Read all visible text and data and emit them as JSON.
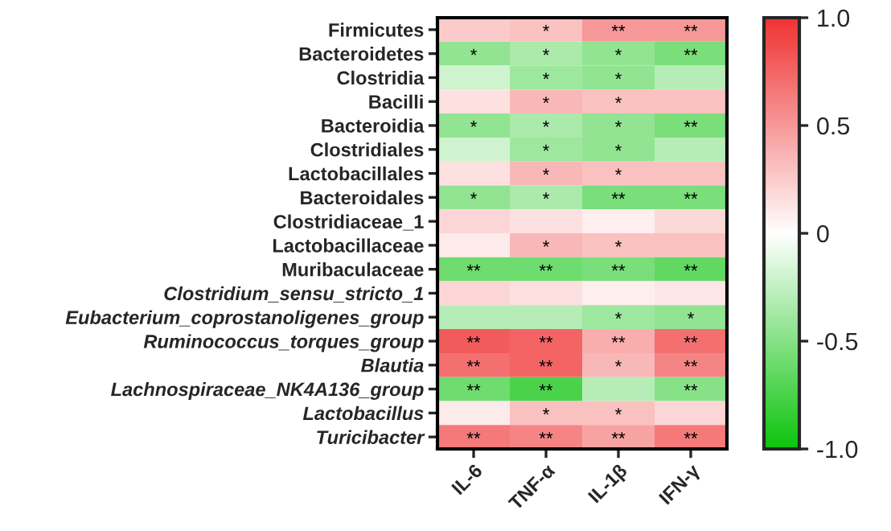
{
  "chart_data": {
    "type": "heatmap",
    "categories": [
      "IL-6",
      "TNF-α",
      "IL-1β",
      "IFN-γ"
    ],
    "y_categories": [
      "Firmicutes",
      "Bacteroidetes",
      "Clostridia",
      "Bacilli",
      "Bacteroidia",
      "Clostridiales",
      "Lactobacillales",
      "Bacteroidales",
      "Clostridiaceae_1",
      "Lactobacillaceae",
      "Muribaculaceae",
      "Clostridium_sensu_stricto_1",
      "Eubacterium_coprostanoligenes_group",
      "Ruminococcus_torques_group",
      "Blautia",
      "Lachnospiraceae_NK4A136_group",
      "Lactobacillus",
      "Turicibacter"
    ],
    "cells": [
      [
        0.25,
        0.3,
        0.5,
        0.5
      ],
      [
        -0.45,
        -0.35,
        -0.45,
        -0.55
      ],
      [
        -0.2,
        -0.4,
        -0.45,
        -0.3
      ],
      [
        0.15,
        0.35,
        0.3,
        0.3
      ],
      [
        -0.45,
        -0.35,
        -0.45,
        -0.55
      ],
      [
        -0.2,
        -0.4,
        -0.45,
        -0.3
      ],
      [
        0.15,
        0.35,
        0.3,
        0.3
      ],
      [
        -0.45,
        -0.35,
        -0.55,
        -0.55
      ],
      [
        0.2,
        0.15,
        0.08,
        0.18
      ],
      [
        0.1,
        0.35,
        0.3,
        0.3
      ],
      [
        -0.6,
        -0.6,
        -0.55,
        -0.65
      ],
      [
        0.2,
        0.15,
        0.08,
        0.12
      ],
      [
        -0.3,
        -0.3,
        -0.4,
        -0.45
      ],
      [
        0.8,
        0.75,
        0.4,
        0.7
      ],
      [
        0.7,
        0.75,
        0.35,
        0.6
      ],
      [
        -0.6,
        -0.75,
        -0.3,
        -0.5
      ],
      [
        0.1,
        0.3,
        0.3,
        0.2
      ],
      [
        0.65,
        0.6,
        0.45,
        0.65
      ]
    ],
    "cell_labels": [
      [
        null,
        "*",
        "**",
        "**"
      ],
      [
        "*",
        "*",
        "*",
        "**"
      ],
      [
        null,
        "*",
        "*",
        null
      ],
      [
        null,
        "*",
        "*",
        null
      ],
      [
        "*",
        "*",
        "*",
        "**"
      ],
      [
        null,
        "*",
        "*",
        null
      ],
      [
        null,
        "*",
        "*",
        null
      ],
      [
        "*",
        "*",
        "**",
        "**"
      ],
      [
        null,
        null,
        null,
        null
      ],
      [
        null,
        "*",
        "*",
        null
      ],
      [
        "**",
        "**",
        "**",
        "**"
      ],
      [
        null,
        null,
        null,
        null
      ],
      [
        null,
        null,
        "*",
        "*"
      ],
      [
        "**",
        "**",
        "**",
        "**"
      ],
      [
        "**",
        "**",
        "*",
        "**"
      ],
      [
        "**",
        "**",
        null,
        "**"
      ],
      [
        null,
        "*",
        "*",
        null
      ],
      [
        "**",
        "**",
        "**",
        "**"
      ]
    ],
    "clim": [
      -1,
      1
    ],
    "cticks": [
      {
        "value": 1,
        "label": "1.0"
      },
      {
        "value": 0.5,
        "label": "0.5"
      },
      0,
      {
        "value": -0.5,
        "label": "-0.5"
      },
      {
        "value": -1,
        "label": "-1.0"
      }
    ]
  }
}
